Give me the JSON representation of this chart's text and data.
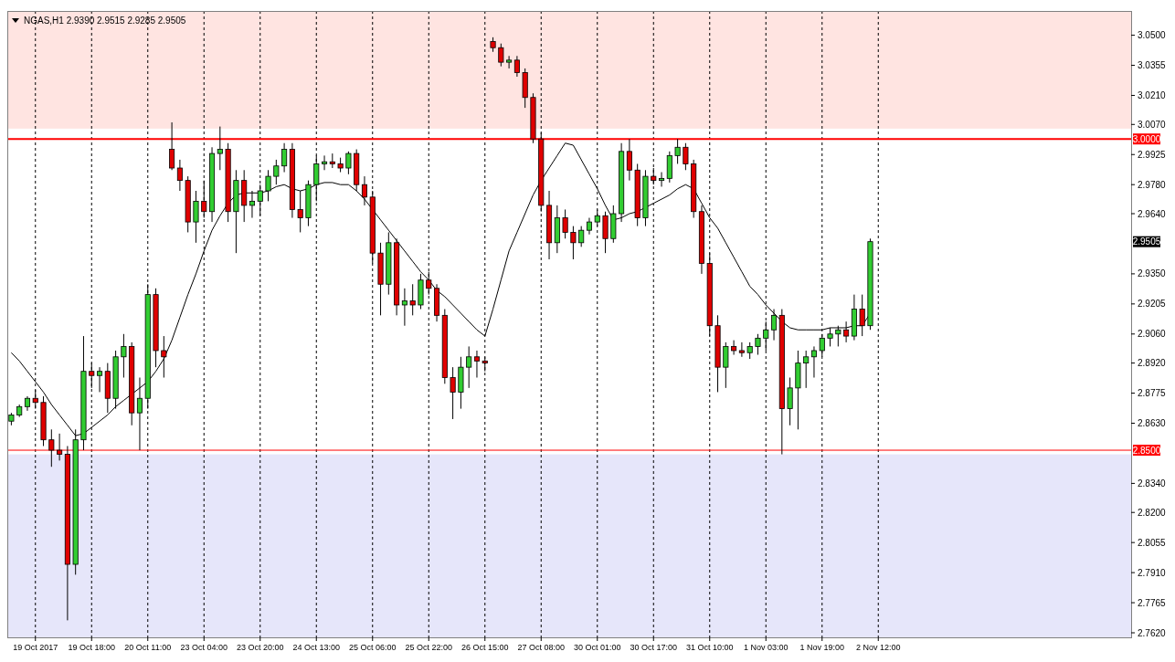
{
  "chart_data": {
    "type": "candlestick",
    "title": "NGAS,H1  2.9390 2.9515 2.9285 2.9505",
    "categories": [
      null,
      null,
      null,
      "19 Oct 2017",
      null,
      null,
      null,
      null,
      null,
      null,
      "19 Oct 18:00",
      null,
      null,
      null,
      null,
      null,
      null,
      "20 Oct 11:00",
      null,
      null,
      null,
      null,
      null,
      null,
      "23 Oct 04:00",
      null,
      null,
      null,
      null,
      null,
      null,
      "23 Oct 20:00",
      null,
      null,
      null,
      null,
      null,
      null,
      "24 Oct 13:00",
      null,
      null,
      null,
      null,
      null,
      null,
      "25 Oct 06:00",
      null,
      null,
      null,
      null,
      null,
      null,
      "25 Oct 22:00",
      null,
      null,
      null,
      null,
      null,
      null,
      "26 Oct 15:00",
      null,
      null,
      null,
      null,
      null,
      null,
      "27 Oct 08:00",
      null,
      null,
      null,
      null,
      null,
      null,
      "30 Oct 01:00",
      null,
      null,
      null,
      null,
      null,
      null,
      "30 Oct 17:00",
      null,
      null,
      null,
      null,
      null,
      null,
      "31 Oct 10:00",
      null,
      null,
      null,
      null,
      null,
      null,
      "1 Nov 03:00",
      null,
      null,
      null,
      null,
      null,
      null,
      "1 Nov 19:00",
      null,
      null,
      null,
      null,
      null,
      null,
      "2 Nov 12:00",
      null,
      null,
      null,
      null,
      null,
      null,
      null,
      null,
      null,
      null,
      null,
      null,
      null,
      null,
      null,
      null,
      null,
      null,
      null,
      null,
      null,
      null,
      null,
      null,
      null,
      null,
      null,
      null,
      null,
      null,
      null
    ],
    "ohlc": [
      [
        2.864,
        2.868,
        2.862,
        2.867
      ],
      [
        2.867,
        2.872,
        2.866,
        2.871
      ],
      [
        2.871,
        2.876,
        2.869,
        2.875
      ],
      [
        2.875,
        2.879,
        2.87,
        2.873
      ],
      [
        2.873,
        2.876,
        2.852,
        2.855
      ],
      [
        2.855,
        2.86,
        2.842,
        2.85
      ],
      [
        2.85,
        2.858,
        2.845,
        2.848
      ],
      [
        2.848,
        2.852,
        2.768,
        2.795
      ],
      [
        2.795,
        2.86,
        2.79,
        2.855
      ],
      [
        2.855,
        2.905,
        2.85,
        2.888
      ],
      [
        2.888,
        2.892,
        2.88,
        2.886
      ],
      [
        2.886,
        2.89,
        2.878,
        2.888
      ],
      [
        2.888,
        2.892,
        2.868,
        2.875
      ],
      [
        2.875,
        2.898,
        2.87,
        2.895
      ],
      [
        2.895,
        2.906,
        2.885,
        2.9
      ],
      [
        2.9,
        2.902,
        2.862,
        2.868
      ],
      [
        2.868,
        2.885,
        2.85,
        2.875
      ],
      [
        2.875,
        2.93,
        2.87,
        2.925
      ],
      [
        2.925,
        2.928,
        2.89,
        2.898
      ],
      [
        2.898,
        2.905,
        2.885,
        2.895
      ],
      [
        2.995,
        3.008,
        2.985,
        2.986
      ],
      [
        2.986,
        2.99,
        2.975,
        2.98
      ],
      [
        2.98,
        2.982,
        2.955,
        2.96
      ],
      [
        2.96,
        2.975,
        2.95,
        2.97
      ],
      [
        2.97,
        2.98,
        2.962,
        2.965
      ],
      [
        2.965,
        2.996,
        2.96,
        2.993
      ],
      [
        2.993,
        3.006,
        2.985,
        2.995
      ],
      [
        2.995,
        2.998,
        2.96,
        2.965
      ],
      [
        2.965,
        2.985,
        2.945,
        2.98
      ],
      [
        2.98,
        2.985,
        2.96,
        2.968
      ],
      [
        2.968,
        2.975,
        2.962,
        2.97
      ],
      [
        2.97,
        2.978,
        2.963,
        2.975
      ],
      [
        2.975,
        2.985,
        2.97,
        2.982
      ],
      [
        2.982,
        2.99,
        2.978,
        2.987
      ],
      [
        2.987,
        2.998,
        2.984,
        2.995
      ],
      [
        2.995,
        2.998,
        2.962,
        2.966
      ],
      [
        2.966,
        2.975,
        2.955,
        2.962
      ],
      [
        2.962,
        2.98,
        2.958,
        2.978
      ],
      [
        2.978,
        2.992,
        2.97,
        2.988
      ],
      [
        2.988,
        2.992,
        2.985,
        2.989
      ],
      [
        2.989,
        2.993,
        2.986,
        2.988
      ],
      [
        2.988,
        2.991,
        2.984,
        2.986
      ],
      [
        2.986,
        2.994,
        2.983,
        2.993
      ],
      [
        2.993,
        2.995,
        2.975,
        2.978
      ],
      [
        2.978,
        2.982,
        2.968,
        2.972
      ],
      [
        2.972,
        2.975,
        2.94,
        2.945
      ],
      [
        2.945,
        2.95,
        2.915,
        2.93
      ],
      [
        2.93,
        2.955,
        2.925,
        2.95
      ],
      [
        2.95,
        2.952,
        2.915,
        2.92
      ],
      [
        2.92,
        2.928,
        2.91,
        2.922
      ],
      [
        2.922,
        2.93,
        2.915,
        2.92
      ],
      [
        2.92,
        2.935,
        2.918,
        2.932
      ],
      [
        2.932,
        2.936,
        2.925,
        2.928
      ],
      [
        2.928,
        2.93,
        2.912,
        2.915
      ],
      [
        2.915,
        2.918,
        2.882,
        2.885
      ],
      [
        2.885,
        2.89,
        2.865,
        2.878
      ],
      [
        2.878,
        2.895,
        2.87,
        2.89
      ],
      [
        2.89,
        2.9,
        2.88,
        2.895
      ],
      [
        2.895,
        2.898,
        2.885,
        2.893
      ],
      [
        2.893,
        2.895,
        2.888,
        2.892
      ],
      [
        3.047,
        3.049,
        3.042,
        3.044
      ],
      [
        3.044,
        3.046,
        3.035,
        3.037
      ],
      [
        3.037,
        3.04,
        3.034,
        3.038
      ],
      [
        3.038,
        3.04,
        3.03,
        3.032
      ],
      [
        3.032,
        3.034,
        3.015,
        3.02
      ],
      [
        3.02,
        3.022,
        2.998,
        3.0
      ],
      [
        3.0,
        3.003,
        2.965,
        2.968
      ],
      [
        2.968,
        2.975,
        2.942,
        2.95
      ],
      [
        2.95,
        2.968,
        2.945,
        2.962
      ],
      [
        2.962,
        2.966,
        2.952,
        2.955
      ],
      [
        2.955,
        2.958,
        2.942,
        2.95
      ],
      [
        2.95,
        2.958,
        2.948,
        2.956
      ],
      [
        2.956,
        2.962,
        2.954,
        2.96
      ],
      [
        2.96,
        2.966,
        2.958,
        2.963
      ],
      [
        2.963,
        2.965,
        2.945,
        2.952
      ],
      [
        2.952,
        2.968,
        2.95,
        2.964
      ],
      [
        2.964,
        2.998,
        2.96,
        2.994
      ],
      [
        2.994,
        3.0,
        2.98,
        2.985
      ],
      [
        2.985,
        2.988,
        2.958,
        2.962
      ],
      [
        2.962,
        2.985,
        2.958,
        2.982
      ],
      [
        2.982,
        2.986,
        2.978,
        2.98
      ],
      [
        2.98,
        2.984,
        2.977,
        2.981
      ],
      [
        2.981,
        2.994,
        2.979,
        2.992
      ],
      [
        2.992,
        3.0,
        2.988,
        2.996
      ],
      [
        2.996,
        2.998,
        2.985,
        2.988
      ],
      [
        2.988,
        2.99,
        2.962,
        2.965
      ],
      [
        2.965,
        2.968,
        2.935,
        2.94
      ],
      [
        2.94,
        2.945,
        2.905,
        2.91
      ],
      [
        2.91,
        2.915,
        2.878,
        2.89
      ],
      [
        2.89,
        2.902,
        2.88,
        2.9
      ],
      [
        2.9,
        2.903,
        2.896,
        2.898
      ],
      [
        2.898,
        2.902,
        2.895,
        2.897
      ],
      [
        2.897,
        2.902,
        2.894,
        2.9
      ],
      [
        2.9,
        2.906,
        2.896,
        2.904
      ],
      [
        2.904,
        2.912,
        2.898,
        2.908
      ],
      [
        2.908,
        2.918,
        2.903,
        2.915
      ],
      [
        2.915,
        2.918,
        2.848,
        2.87
      ],
      [
        2.87,
        2.885,
        2.862,
        2.88
      ],
      [
        2.88,
        2.898,
        2.86,
        2.892
      ],
      [
        2.892,
        2.898,
        2.88,
        2.895
      ],
      [
        2.895,
        2.9,
        2.885,
        2.898
      ],
      [
        2.898,
        2.906,
        2.895,
        2.904
      ],
      [
        2.904,
        2.909,
        2.9,
        2.906
      ],
      [
        2.906,
        2.91,
        2.9,
        2.908
      ],
      [
        2.908,
        2.912,
        2.902,
        2.905
      ],
      [
        2.905,
        2.925,
        2.903,
        2.918
      ],
      [
        2.918,
        2.925,
        2.905,
        2.91
      ],
      [
        2.91,
        2.952,
        2.908,
        2.9505
      ],
      null,
      null,
      null,
      null,
      null,
      null,
      null,
      null,
      null,
      null,
      null,
      null,
      null,
      null,
      null,
      null,
      null,
      null,
      null,
      null,
      null,
      null,
      null,
      null,
      null,
      null,
      null,
      null,
      null,
      null,
      null,
      null
    ],
    "series": [
      {
        "type": "line",
        "color": "#000000",
        "values": [
          2.897,
          2.893,
          2.888,
          2.883,
          2.878,
          2.872,
          2.867,
          2.862,
          2.857,
          2.858,
          2.861,
          2.864,
          2.867,
          2.871,
          2.874,
          2.877,
          2.88,
          2.883,
          2.888,
          2.894,
          2.903,
          2.914,
          2.925,
          2.935,
          2.946,
          2.956,
          2.963,
          2.969,
          2.973,
          2.974,
          2.974,
          2.974,
          2.975,
          2.977,
          2.978,
          2.976,
          2.975,
          2.976,
          2.978,
          2.979,
          2.979,
          2.978,
          2.978,
          2.975,
          2.971,
          2.966,
          2.961,
          2.956,
          2.951,
          2.946,
          2.941,
          2.936,
          2.932,
          2.927,
          2.924,
          2.92,
          2.916,
          2.912,
          2.908,
          2.905,
          2.918,
          2.932,
          2.946,
          2.955,
          2.964,
          2.973,
          2.98,
          2.986,
          2.992,
          2.998,
          2.997,
          2.99,
          2.983,
          2.976,
          2.968,
          2.961,
          2.962,
          2.964,
          2.965,
          2.967,
          2.969,
          2.971,
          2.973,
          2.976,
          2.978,
          2.976,
          2.969,
          2.962,
          2.957,
          2.95,
          2.943,
          2.936,
          2.929,
          2.925,
          2.92,
          2.916,
          2.912,
          2.909,
          2.908,
          2.908,
          2.908,
          2.908,
          2.909,
          2.909,
          2.909,
          2.91,
          2.91,
          2.916,
          null,
          null,
          null,
          null,
          null,
          null,
          null,
          null,
          null,
          null,
          null,
          null,
          null,
          null,
          null,
          null,
          null,
          null,
          null,
          null,
          null,
          null,
          null,
          null,
          null,
          null,
          null,
          null,
          null,
          null,
          null,
          null
        ]
      }
    ],
    "ylim": [
      2.7598,
      3.0617
    ],
    "yticks": [
      {
        "value": 2.762,
        "label": "2.7620"
      },
      {
        "value": 2.7765,
        "label": "2.7765"
      },
      {
        "value": 2.791,
        "label": "2.7910"
      },
      {
        "value": 2.8055,
        "label": "2.8055"
      },
      {
        "value": 2.82,
        "label": "2.8200"
      },
      {
        "value": 2.834,
        "label": "2.8340"
      },
      {
        "value": 2.863,
        "label": "2.8630"
      },
      {
        "value": 2.8775,
        "label": "2.8775"
      },
      {
        "value": 2.892,
        "label": "2.8920"
      },
      {
        "value": 2.906,
        "label": "2.9060"
      },
      {
        "value": 2.9205,
        "label": "2.9205"
      },
      {
        "value": 2.935,
        "label": "2.9350"
      },
      {
        "value": 2.964,
        "label": "2.9640"
      },
      {
        "value": 2.978,
        "label": "2.9780"
      },
      {
        "value": 2.9925,
        "label": "2.9925"
      },
      {
        "value": 3.007,
        "label": "3.0070"
      },
      {
        "value": 3.021,
        "label": "3.0210"
      },
      {
        "value": 3.0355,
        "label": "3.0355"
      },
      {
        "value": 3.05,
        "label": "3.0500"
      }
    ],
    "grid": "x",
    "bands": [
      {
        "axis": "y",
        "from": 3.005,
        "to": 3.0617,
        "color": "#ffe4e1"
      },
      {
        "axis": "y",
        "from": 2.7598,
        "to": 2.848,
        "color": "#e6e6fa"
      }
    ],
    "ref_lines": [
      {
        "axis": "y",
        "value": 3.0,
        "label": "3.0000",
        "color": "#ff0000"
      },
      {
        "axis": "y",
        "value": 2.85,
        "label": "2.8500",
        "color": "#ff0000"
      }
    ],
    "annotations": [
      {
        "text": "2.9505",
        "y": 2.9505
      }
    ]
  }
}
